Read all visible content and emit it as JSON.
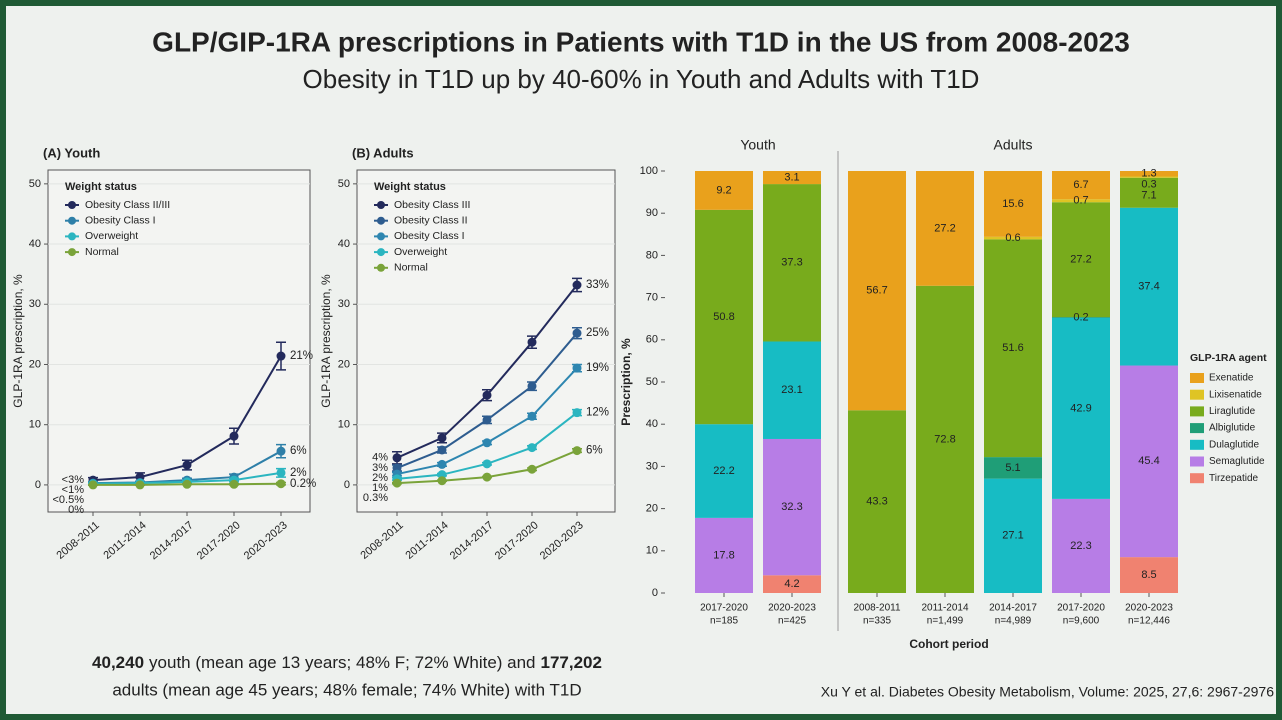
{
  "slide": {
    "title": "GLP/GIP-1RA prescriptions in Patients with T1D in the US from 2008-2023",
    "subtitle": "Obesity in T1D up by 40-60% in Youth and Adults with T1D",
    "summary": {
      "youth_count": "40,240",
      "text1": "youth (mean age 13 years; 48% F; 72% White) and",
      "adult_count": "177,202",
      "text2": "adults (mean age 45 years; 48% female; 74% White) with T1D"
    },
    "citation": "Xu Y et al. Diabetes Obesity Metabolism, Volume: 2025, 27,6: 2967-2976"
  },
  "chart_data": [
    {
      "type": "line",
      "panel_title": "(A) Youth",
      "ylabel": "GLP-1RA prescription, %",
      "legend_title": "Weight status",
      "legend": "upper left",
      "grid": true,
      "categories": [
        "2008-2011",
        "2011-2014",
        "2014-2017",
        "2017-2020",
        "2020-2023"
      ],
      "ylim": [
        -4.5,
        52.3
      ],
      "yticks": [
        0,
        10,
        20,
        30,
        40,
        50
      ],
      "series": [
        {
          "name": "Obesity Class II/III",
          "color": "#232a5c",
          "values": [
            0.8,
            1.3,
            3.3,
            8.1,
            21.4
          ],
          "errors": [
            0.4,
            0.7,
            0.8,
            1.3,
            2.3
          ],
          "start_label": "<3%",
          "end_label": "21%"
        },
        {
          "name": "Obesity Class I",
          "color": "#2e7fa8",
          "values": [
            0.3,
            0.4,
            0.8,
            1.3,
            5.6
          ],
          "errors": [
            0.2,
            0.2,
            0.3,
            0.5,
            1.1
          ],
          "start_label": "<1%",
          "end_label": "6%"
        },
        {
          "name": "Overweight",
          "color": "#2bb5c0",
          "values": [
            0.2,
            0.3,
            0.5,
            0.8,
            2.0
          ],
          "errors": [
            0.1,
            0.1,
            0.2,
            0.3,
            0.7
          ],
          "start_label": "<0.5%",
          "end_label": "2%"
        },
        {
          "name": "Normal",
          "color": "#7aa33a",
          "values": [
            0.0,
            0.0,
            0.1,
            0.1,
            0.2
          ],
          "errors": [
            0.05,
            0.05,
            0.05,
            0.1,
            0.2
          ],
          "start_label": "0%",
          "end_label": "0.2%"
        }
      ]
    },
    {
      "type": "line",
      "panel_title": "(B) Adults",
      "ylabel": "GLP-1RA prescription, %",
      "legend_title": "Weight status",
      "legend": "upper left",
      "grid": true,
      "categories": [
        "2008-2011",
        "2011-2014",
        "2014-2017",
        "2017-2020",
        "2020-2023"
      ],
      "ylim": [
        -4.5,
        52.3
      ],
      "yticks": [
        0,
        10,
        20,
        30,
        40,
        50
      ],
      "series": [
        {
          "name": "Obesity Class III",
          "color": "#232a5c",
          "values": [
            4.5,
            7.8,
            14.9,
            23.7,
            33.2
          ],
          "errors": [
            1.0,
            0.8,
            0.9,
            1.0,
            1.1
          ],
          "start_label": "4%",
          "end_label": "33%"
        },
        {
          "name": "Obesity Class II",
          "color": "#2e5c8f",
          "values": [
            2.8,
            5.8,
            10.8,
            16.4,
            25.2
          ],
          "errors": [
            0.5,
            0.5,
            0.6,
            0.7,
            0.9
          ],
          "start_label": "3%",
          "end_label": "25%"
        },
        {
          "name": "Obesity Class I",
          "color": "#2e86b0",
          "values": [
            1.8,
            3.4,
            7.0,
            11.4,
            19.4
          ],
          "errors": [
            0.3,
            0.3,
            0.3,
            0.5,
            0.6
          ],
          "start_label": "2%",
          "end_label": "19%"
        },
        {
          "name": "Overweight",
          "color": "#2bb5c0",
          "values": [
            1.0,
            1.7,
            3.5,
            6.2,
            12.0
          ],
          "errors": [
            0.2,
            0.2,
            0.2,
            0.3,
            0.5
          ],
          "start_label": "1%",
          "end_label": "12%"
        },
        {
          "name": "Normal",
          "color": "#7aa33a",
          "values": [
            0.3,
            0.7,
            1.3,
            2.6,
            5.7
          ],
          "errors": [
            0.1,
            0.1,
            0.1,
            0.2,
            0.3
          ],
          "start_label": "0.3%",
          "end_label": "6%"
        }
      ]
    },
    {
      "type": "stacked_bar",
      "ylabel": "Prescription, %",
      "xlabel": "Cohort period",
      "legend_title": "GLP-1RA agent",
      "legend": "right",
      "ylim": [
        0,
        100
      ],
      "yticks": [
        0,
        10,
        20,
        30,
        40,
        50,
        60,
        70,
        80,
        90,
        100
      ],
      "series": [
        {
          "name": "Exenatide",
          "color": "#e9a11c"
        },
        {
          "name": "Lixisenatide",
          "color": "#dfc424"
        },
        {
          "name": "Liraglutide",
          "color": "#78ab1c"
        },
        {
          "name": "Albiglutide",
          "color": "#1f9e77"
        },
        {
          "name": "Dulaglutide",
          "color": "#17bcc4"
        },
        {
          "name": "Semaglutide",
          "color": "#b77de6"
        },
        {
          "name": "Tirzepatide",
          "color": "#f08270"
        }
      ],
      "panels": [
        {
          "title": "Youth",
          "categories": [
            "2017-2020",
            "2020-2023"
          ],
          "n_labels": [
            "n=185",
            "n=425"
          ],
          "values": [
            [
              9.2,
              3.1
            ],
            [
              null,
              null
            ],
            [
              50.8,
              37.3
            ],
            [
              null,
              null
            ],
            [
              22.2,
              23.1
            ],
            [
              17.8,
              32.3
            ],
            [
              null,
              4.2
            ]
          ]
        },
        {
          "title": "Adults",
          "categories": [
            "2008-2011",
            "2011-2014",
            "2014-2017",
            "2017-2020",
            "2020-2023"
          ],
          "n_labels": [
            "n=335",
            "n=1,499",
            "n=4,989",
            "n=9,600",
            "n=12,446"
          ],
          "values": [
            [
              56.7,
              27.2,
              15.6,
              6.7,
              1.3
            ],
            [
              null,
              null,
              0.6,
              0.7,
              0.3
            ],
            [
              43.3,
              72.8,
              51.6,
              27.2,
              7.1
            ],
            [
              null,
              null,
              5.1,
              0.2,
              null
            ],
            [
              null,
              null,
              27.1,
              42.9,
              37.4
            ],
            [
              null,
              null,
              null,
              22.3,
              45.4
            ],
            [
              null,
              null,
              null,
              null,
              8.5
            ]
          ]
        }
      ]
    }
  ]
}
